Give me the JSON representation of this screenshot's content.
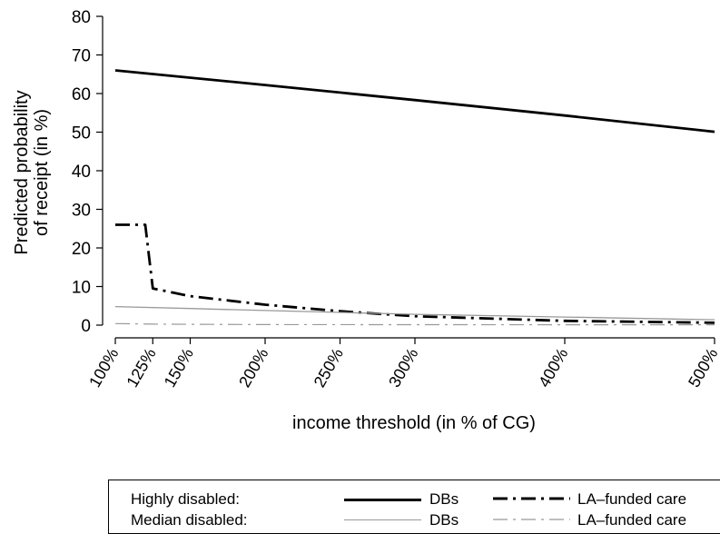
{
  "chart_data": {
    "type": "line",
    "title": "",
    "xlabel": "income threshold (in % of CG)",
    "ylabel_lines": [
      "Predicted probability",
      "of receipt (in %)"
    ],
    "xlim": [
      100,
      500
    ],
    "ylim": [
      0,
      80
    ],
    "y_ticks": [
      0,
      10,
      20,
      30,
      40,
      50,
      60,
      70,
      80
    ],
    "x_ticks": [
      100,
      125,
      150,
      200,
      250,
      300,
      400,
      500
    ],
    "x_tick_labels": [
      "100%",
      "125%",
      "150%",
      "200%",
      "250%",
      "300%",
      "400%",
      "500%"
    ],
    "grid": false,
    "legend_position": "bottom",
    "series": [
      {
        "name": "DBs",
        "group": "Highly disabled:",
        "style": "solid-thick",
        "color": "#000000",
        "points": [
          [
            100,
            66
          ],
          [
            200,
            62.2
          ],
          [
            300,
            58.3
          ],
          [
            400,
            54.3
          ],
          [
            500,
            50.1
          ]
        ]
      },
      {
        "name": "LA–funded care",
        "group": "Highly disabled:",
        "style": "dashdot-thick",
        "color": "#000000",
        "points": [
          [
            100,
            26
          ],
          [
            120,
            26
          ],
          [
            125,
            9.5
          ],
          [
            150,
            7.5
          ],
          [
            200,
            5.3
          ],
          [
            250,
            3.6
          ],
          [
            300,
            2.3
          ],
          [
            400,
            1.1
          ],
          [
            500,
            0.6
          ]
        ]
      },
      {
        "name": "DBs",
        "group": "Median disabled:",
        "style": "solid-thin",
        "color": "#999999",
        "points": [
          [
            100,
            4.8
          ],
          [
            150,
            4.3
          ],
          [
            200,
            3.8
          ],
          [
            250,
            3.3
          ],
          [
            300,
            2.8
          ],
          [
            400,
            2.1
          ],
          [
            500,
            1.4
          ]
        ]
      },
      {
        "name": "LA–funded care",
        "group": "Median disabled:",
        "style": "dashdot-thin",
        "color": "#999999",
        "points": [
          [
            100,
            0.4
          ],
          [
            125,
            0.25
          ],
          [
            150,
            0.2
          ],
          [
            200,
            0.15
          ],
          [
            300,
            0.12
          ],
          [
            400,
            0.1
          ],
          [
            500,
            0.1
          ]
        ]
      }
    ]
  },
  "legend": {
    "rows": [
      {
        "group_label": "Highly disabled:",
        "item1_label": "DBs",
        "item2_label": "LA–funded care"
      },
      {
        "group_label": "Median disabled:",
        "item1_label": "DBs",
        "item2_label": "LA–funded care"
      }
    ]
  }
}
